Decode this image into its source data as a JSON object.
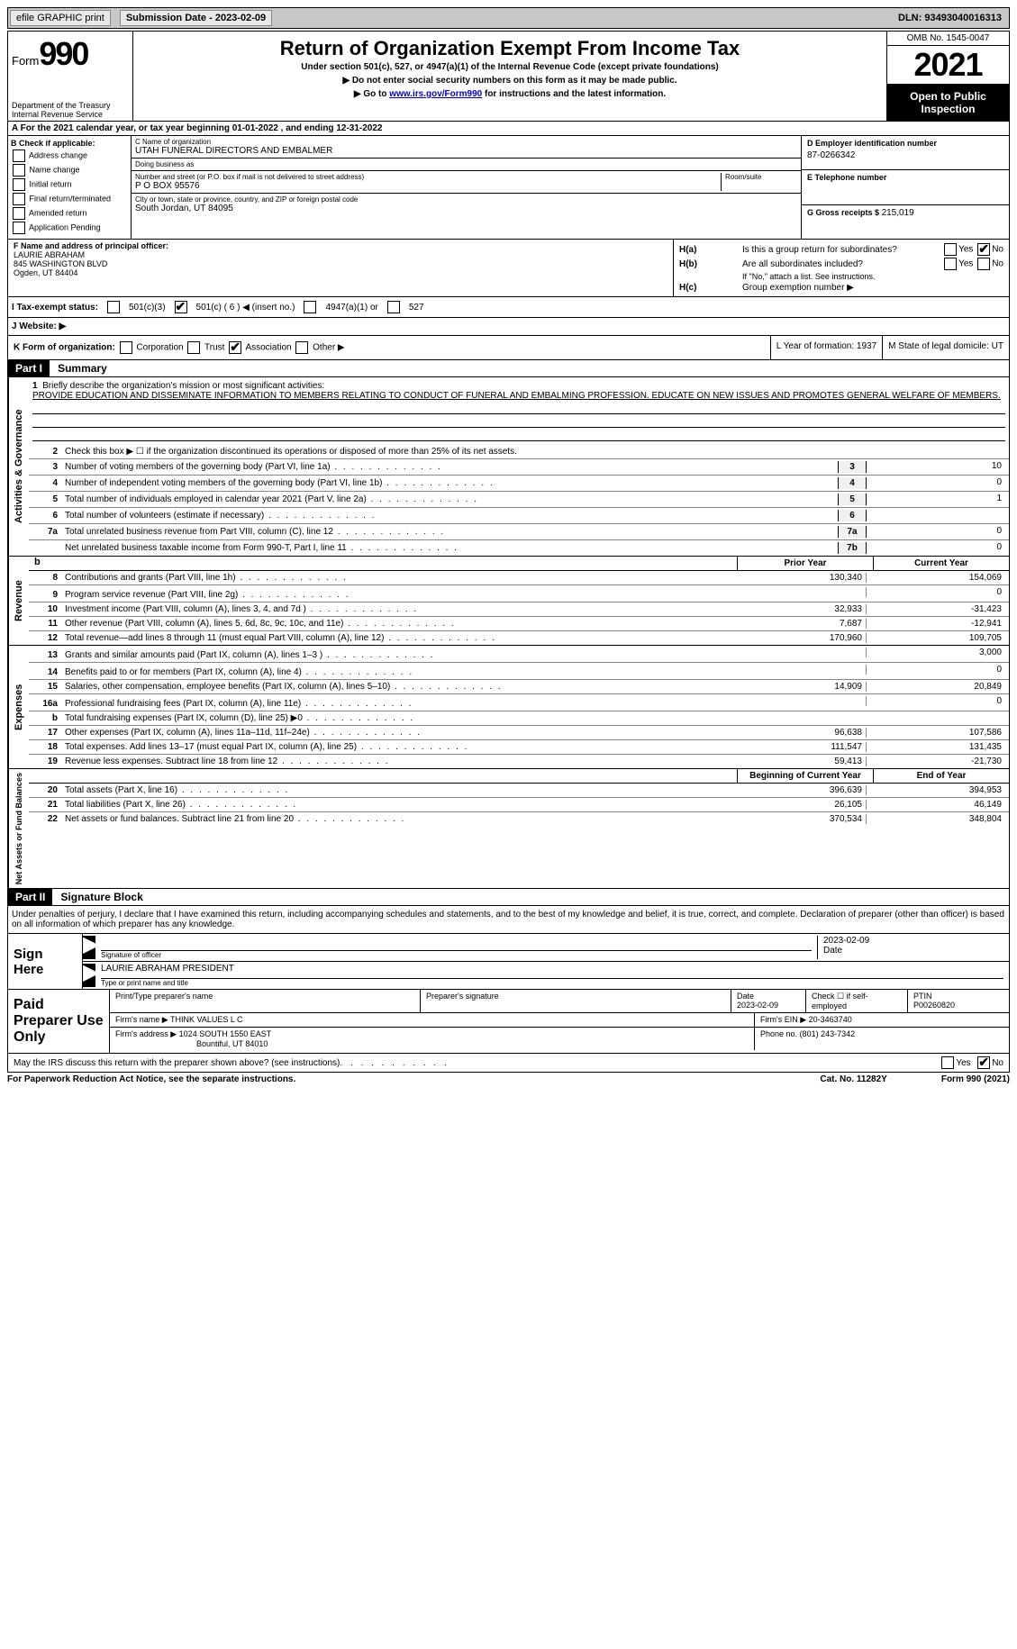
{
  "topbar": {
    "efile": "efile GRAPHIC print",
    "submission_label": "Submission Date - 2023-02-09",
    "dln": "DLN: 93493040016313"
  },
  "header": {
    "form_label": "Form",
    "form_num": "990",
    "title": "Return of Organization Exempt From Income Tax",
    "sub": "Under section 501(c), 527, or 4947(a)(1) of the Internal Revenue Code (except private foundations)",
    "sub2": "▶ Do not enter social security numbers on this form as it may be made public.",
    "sub3_pre": "▶ Go to ",
    "sub3_link": "www.irs.gov/Form990",
    "sub3_post": " for instructions and the latest information.",
    "dept": "Department of the Treasury Internal Revenue Service",
    "omb": "OMB No. 1545-0047",
    "year": "2021",
    "open_public": "Open to Public Inspection"
  },
  "line_a": "A For the 2021 calendar year, or tax year beginning 01-01-2022   , and ending 12-31-2022",
  "box_b": {
    "title": "B Check if applicable:",
    "opts": [
      "Address change",
      "Name change",
      "Initial return",
      "Final return/terminated",
      "Amended return",
      "Application Pending"
    ]
  },
  "box_c": {
    "name_label": "C Name of organization",
    "name": "UTAH FUNERAL DIRECTORS AND EMBALMER",
    "dba_label": "Doing business as",
    "dba": "",
    "street_label": "Number and street (or P.O. box if mail is not delivered to street address)",
    "street": "P O BOX 95576",
    "room_label": "Room/suite",
    "city_label": "City or town, state or province, country, and ZIP or foreign postal code",
    "city": "South Jordan, UT  84095"
  },
  "box_d": {
    "ein_label": "D Employer identification number",
    "ein": "87-0266342",
    "tel_label": "E Telephone number",
    "tel": "",
    "gross_label": "G Gross receipts $",
    "gross": "215,019"
  },
  "box_f": {
    "label": "F  Name and address of principal officer:",
    "name": "LAURIE ABRAHAM",
    "street": "845 WASHINGTON BLVD",
    "city": "Ogden, UT  84404"
  },
  "box_h": {
    "ha_label": "H(a)",
    "ha_text": "Is this a group return for subordinates?",
    "hb_label": "H(b)",
    "hb_text": "Are all subordinates included?",
    "hb_note": "If \"No,\" attach a list. See instructions.",
    "hc_label": "H(c)",
    "hc_text": "Group exemption number ▶",
    "yes": "Yes",
    "no": "No"
  },
  "tax_status": {
    "label": "I  Tax-exempt status:",
    "opt1": "501(c)(3)",
    "opt2": "501(c) ( 6 ) ◀ (insert no.)",
    "opt3": "4947(a)(1) or",
    "opt4": "527"
  },
  "website": "J  Website: ▶",
  "form_org": {
    "label": "K Form of organization:",
    "opts": [
      "Corporation",
      "Trust",
      "Association",
      "Other ▶"
    ],
    "year_label": "L Year of formation: 1937",
    "state_label": "M State of legal domicile: UT"
  },
  "part1": {
    "tag": "Part I",
    "title": "Summary",
    "line1_label": "1",
    "line1_text": "Briefly describe the organization's mission or most significant activities:",
    "mission": "PROVIDE EDUCATION AND DISSEMINATE INFORMATION TO MEMBERS RELATING TO CONDUCT OF FUNERAL AND EMBALMING PROFESSION. EDUCATE ON NEW ISSUES AND PROMOTES GENERAL WELFARE OF MEMBERS.",
    "line2": "Check this box ▶ ☐  if the organization discontinued its operations or disposed of more than 25% of its net assets.",
    "side_activities": "Activities & Governance",
    "side_revenue": "Revenue",
    "side_expenses": "Expenses",
    "side_net": "Net Assets or Fund Balances",
    "rows_gov": [
      {
        "n": "3",
        "d": "Number of voting members of the governing body (Part VI, line 1a)",
        "box": "3",
        "v": "10"
      },
      {
        "n": "4",
        "d": "Number of independent voting members of the governing body (Part VI, line 1b)",
        "box": "4",
        "v": "0"
      },
      {
        "n": "5",
        "d": "Total number of individuals employed in calendar year 2021 (Part V, line 2a)",
        "box": "5",
        "v": "1"
      },
      {
        "n": "6",
        "d": "Total number of volunteers (estimate if necessary)",
        "box": "6",
        "v": ""
      },
      {
        "n": "7a",
        "d": "Total unrelated business revenue from Part VIII, column (C), line 12",
        "box": "7a",
        "v": "0"
      },
      {
        "n": "",
        "d": "Net unrelated business taxable income from Form 990-T, Part I, line 11",
        "box": "7b",
        "v": "0"
      }
    ],
    "prior_year": "Prior Year",
    "current_year": "Current Year",
    "rows_rev": [
      {
        "n": "8",
        "d": "Contributions and grants (Part VIII, line 1h)",
        "p": "130,340",
        "c": "154,069"
      },
      {
        "n": "9",
        "d": "Program service revenue (Part VIII, line 2g)",
        "p": "",
        "c": "0"
      },
      {
        "n": "10",
        "d": "Investment income (Part VIII, column (A), lines 3, 4, and 7d )",
        "p": "32,933",
        "c": "-31,423"
      },
      {
        "n": "11",
        "d": "Other revenue (Part VIII, column (A), lines 5, 6d, 8c, 9c, 10c, and 11e)",
        "p": "7,687",
        "c": "-12,941"
      },
      {
        "n": "12",
        "d": "Total revenue—add lines 8 through 11 (must equal Part VIII, column (A), line 12)",
        "p": "170,960",
        "c": "109,705"
      }
    ],
    "rows_exp": [
      {
        "n": "13",
        "d": "Grants and similar amounts paid (Part IX, column (A), lines 1–3 )",
        "p": "",
        "c": "3,000"
      },
      {
        "n": "14",
        "d": "Benefits paid to or for members (Part IX, column (A), line 4)",
        "p": "",
        "c": "0"
      },
      {
        "n": "15",
        "d": "Salaries, other compensation, employee benefits (Part IX, column (A), lines 5–10)",
        "p": "14,909",
        "c": "20,849"
      },
      {
        "n": "16a",
        "d": "Professional fundraising fees (Part IX, column (A), line 11e)",
        "p": "",
        "c": "0"
      },
      {
        "n": "b",
        "d": "Total fundraising expenses (Part IX, column (D), line 25) ▶0",
        "p": "shaded",
        "c": "shaded"
      },
      {
        "n": "17",
        "d": "Other expenses (Part IX, column (A), lines 11a–11d, 11f–24e)",
        "p": "96,638",
        "c": "107,586"
      },
      {
        "n": "18",
        "d": "Total expenses. Add lines 13–17 (must equal Part IX, column (A), line 25)",
        "p": "111,547",
        "c": "131,435"
      },
      {
        "n": "19",
        "d": "Revenue less expenses. Subtract line 18 from line 12",
        "p": "59,413",
        "c": "-21,730"
      }
    ],
    "begin_year": "Beginning of Current Year",
    "end_year": "End of Year",
    "rows_net": [
      {
        "n": "20",
        "d": "Total assets (Part X, line 16)",
        "p": "396,639",
        "c": "394,953"
      },
      {
        "n": "21",
        "d": "Total liabilities (Part X, line 26)",
        "p": "26,105",
        "c": "46,149"
      },
      {
        "n": "22",
        "d": "Net assets or fund balances. Subtract line 21 from line 20",
        "p": "370,534",
        "c": "348,804"
      }
    ]
  },
  "part2": {
    "tag": "Part II",
    "title": "Signature Block",
    "text": "Under penalties of perjury, I declare that I have examined this return, including accompanying schedules and statements, and to the best of my knowledge and belief, it is true, correct, and complete. Declaration of preparer (other than officer) is based on all information of which preparer has any knowledge.",
    "sign_here": "Sign Here",
    "sig_officer": "Signature of officer",
    "sig_date": "2023-02-09",
    "sig_name": "LAURIE ABRAHAM  PRESIDENT",
    "sig_name_label": "Type or print name and title",
    "date_label": "Date",
    "paid_prep": "Paid Preparer Use Only",
    "print_name_label": "Print/Type preparer's name",
    "prep_sig_label": "Preparer's signature",
    "prep_date_label": "Date",
    "prep_date": "2023-02-09",
    "check_if": "Check ☐ if self-employed",
    "ptin_label": "PTIN",
    "ptin": "P00260820",
    "firm_name_label": "Firm's name   ▶",
    "firm_name": "THINK VALUES L C",
    "firm_ein_label": "Firm's EIN ▶",
    "firm_ein": "20-3463740",
    "firm_addr_label": "Firm's address ▶",
    "firm_addr": "1024 SOUTH 1550 EAST",
    "firm_city": "Bountiful, UT  84010",
    "phone_label": "Phone no.",
    "phone": "(801) 243-7342",
    "irs_discuss": "May the IRS discuss this return with the preparer shown above? (see instructions)",
    "yes": "Yes",
    "no": "No"
  },
  "footer": {
    "left": "For Paperwork Reduction Act Notice, see the separate instructions.",
    "mid": "Cat. No. 11282Y",
    "right": "Form 990 (2021)"
  }
}
